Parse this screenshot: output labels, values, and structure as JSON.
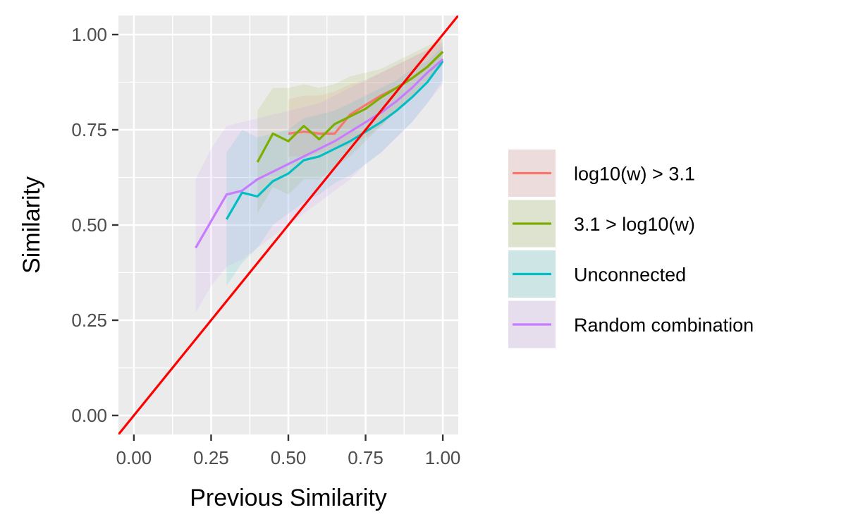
{
  "chart_data": {
    "type": "line",
    "title": "",
    "xlabel": "Previous Similarity",
    "ylabel": "Similarity",
    "xlim": [
      -0.05,
      1.05
    ],
    "ylim": [
      -0.05,
      1.05
    ],
    "xticks": [
      0,
      0.25,
      0.5,
      0.75,
      1
    ],
    "xtick_labels": [
      "0.00",
      "0.25",
      "0.50",
      "0.75",
      "1.00"
    ],
    "yticks": [
      0,
      0.25,
      0.5,
      0.75,
      1
    ],
    "ytick_labels": [
      "0.00",
      "0.25",
      "0.50",
      "0.75",
      "1.00"
    ],
    "grid": true,
    "legend_position": "right",
    "reference_line": {
      "slope": 1,
      "intercept": 0,
      "color": "#ff0000"
    },
    "series": [
      {
        "name": "log10(w) > 3.1",
        "color": "#f8766d",
        "x": [
          0.5,
          0.55,
          0.6,
          0.65,
          0.7,
          0.75,
          0.8,
          0.85,
          0.9,
          0.95,
          1.0
        ],
        "y": [
          0.74,
          0.745,
          0.74,
          0.74,
          0.79,
          0.815,
          0.84,
          0.86,
          0.885,
          0.915,
          0.955
        ],
        "lower": [
          0.68,
          0.68,
          0.69,
          0.7,
          0.71,
          0.73,
          0.76,
          0.8,
          0.84,
          0.88,
          0.92
        ],
        "upper": [
          0.83,
          0.84,
          0.84,
          0.85,
          0.87,
          0.88,
          0.9,
          0.92,
          0.94,
          0.96,
          0.99
        ]
      },
      {
        "name": "3.1 > log10(w)",
        "color": "#7cae00",
        "x": [
          0.4,
          0.45,
          0.5,
          0.55,
          0.6,
          0.65,
          0.7,
          0.75,
          0.8,
          0.85,
          0.9,
          0.95,
          1.0
        ],
        "y": [
          0.665,
          0.74,
          0.72,
          0.76,
          0.725,
          0.765,
          0.785,
          0.805,
          0.835,
          0.86,
          0.885,
          0.915,
          0.955
        ],
        "lower": [
          0.53,
          0.6,
          0.58,
          0.62,
          0.62,
          0.65,
          0.68,
          0.72,
          0.76,
          0.8,
          0.84,
          0.88,
          0.92
        ],
        "upper": [
          0.8,
          0.86,
          0.86,
          0.87,
          0.86,
          0.87,
          0.89,
          0.9,
          0.91,
          0.93,
          0.95,
          0.97,
          0.99
        ]
      },
      {
        "name": "Unconnected",
        "color": "#00bfc4",
        "x": [
          0.3,
          0.35,
          0.4,
          0.45,
          0.5,
          0.55,
          0.6,
          0.65,
          0.7,
          0.75,
          0.8,
          0.85,
          0.9,
          0.95,
          1.0
        ],
        "y": [
          0.515,
          0.585,
          0.575,
          0.615,
          0.635,
          0.67,
          0.68,
          0.7,
          0.72,
          0.745,
          0.77,
          0.8,
          0.835,
          0.875,
          0.93
        ],
        "lower": [
          0.34,
          0.4,
          0.44,
          0.5,
          0.53,
          0.56,
          0.58,
          0.61,
          0.63,
          0.66,
          0.69,
          0.73,
          0.77,
          0.82,
          0.88
        ],
        "upper": [
          0.69,
          0.75,
          0.73,
          0.74,
          0.75,
          0.78,
          0.79,
          0.8,
          0.82,
          0.84,
          0.86,
          0.88,
          0.91,
          0.93,
          0.97
        ]
      },
      {
        "name": "Random combination",
        "color": "#c77cff",
        "x": [
          0.2,
          0.25,
          0.3,
          0.35,
          0.4,
          0.45,
          0.5,
          0.55,
          0.6,
          0.65,
          0.7,
          0.75,
          0.8,
          0.85,
          0.9,
          0.95,
          1.0
        ],
        "y": [
          0.44,
          0.51,
          0.58,
          0.59,
          0.62,
          0.64,
          0.66,
          0.68,
          0.7,
          0.72,
          0.745,
          0.77,
          0.795,
          0.825,
          0.86,
          0.9,
          0.935
        ],
        "lower": [
          0.27,
          0.34,
          0.39,
          0.41,
          0.44,
          0.47,
          0.5,
          0.53,
          0.56,
          0.59,
          0.62,
          0.66,
          0.69,
          0.73,
          0.77,
          0.82,
          0.87
        ],
        "upper": [
          0.62,
          0.7,
          0.76,
          0.77,
          0.78,
          0.79,
          0.8,
          0.81,
          0.82,
          0.84,
          0.86,
          0.88,
          0.9,
          0.92,
          0.94,
          0.96,
          0.98
        ]
      }
    ]
  }
}
